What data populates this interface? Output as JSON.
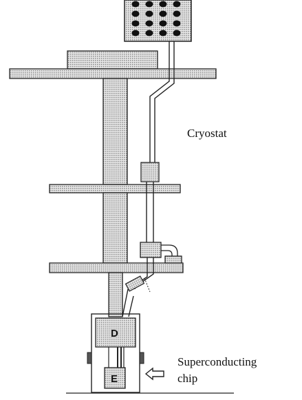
{
  "labels": {
    "cryostat": "Cryostat",
    "chip_line1": "Superconducting",
    "chip_line2": "chip",
    "box_d": "D",
    "box_e": "E"
  },
  "colors": {
    "hatch_fill": "#cfcfcf",
    "stroke": "#222222",
    "connector_dots": "#111111"
  },
  "icons": {
    "chip_pointer": "left-arrow-icon"
  }
}
